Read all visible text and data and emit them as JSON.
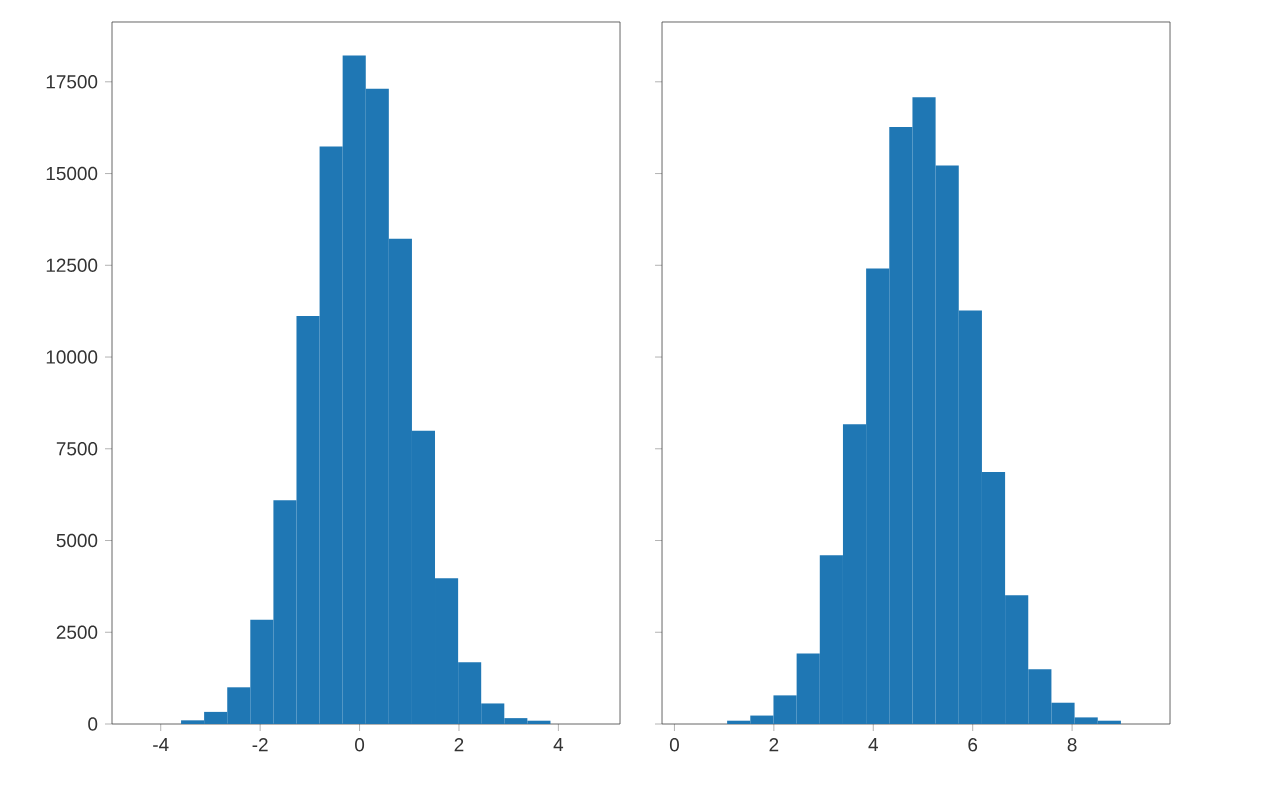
{
  "chart_data": [
    {
      "type": "histogram",
      "bins": [
        -3.591,
        -3.127,
        -2.662,
        -2.198,
        -1.733,
        -1.269,
        -0.804,
        -0.34,
        0.125,
        0.589,
        1.054,
        1.518,
        1.983,
        2.447,
        2.912,
        3.376,
        3.841
      ],
      "values": [
        100,
        330,
        1000,
        2840,
        6100,
        11120,
        15740,
        18220,
        17310,
        13220,
        7990,
        3970,
        1680,
        560,
        160,
        90
      ],
      "color": "#1f77b4",
      "xlim": [
        -4.98,
        5.24
      ],
      "xticks": [
        -4,
        -2,
        0,
        2,
        4
      ],
      "ylim": [
        0,
        19130
      ],
      "yticks": [
        0,
        2500,
        5000,
        7500,
        10000,
        12500,
        15000,
        17500
      ]
    },
    {
      "type": "histogram",
      "bins": [
        1.06,
        1.526,
        1.992,
        2.458,
        2.924,
        3.39,
        3.856,
        4.322,
        4.788,
        5.254,
        5.72,
        6.186,
        6.652,
        7.118,
        7.584,
        8.05,
        8.516,
        8.982
      ],
      "values": [
        90,
        230,
        780,
        1920,
        4600,
        8170,
        12410,
        16270,
        17080,
        15220,
        11270,
        6870,
        3510,
        1490,
        580,
        180,
        90
      ],
      "color": "#1f77b4",
      "xlim": [
        -0.25,
        9.97
      ],
      "xticks": [
        0,
        2,
        4,
        6,
        8
      ],
      "ylim": [
        0,
        19130
      ],
      "yticks": [
        0,
        2500,
        5000,
        7500,
        10000,
        12500,
        15000,
        17500
      ],
      "tick_labels": "x"
    }
  ]
}
